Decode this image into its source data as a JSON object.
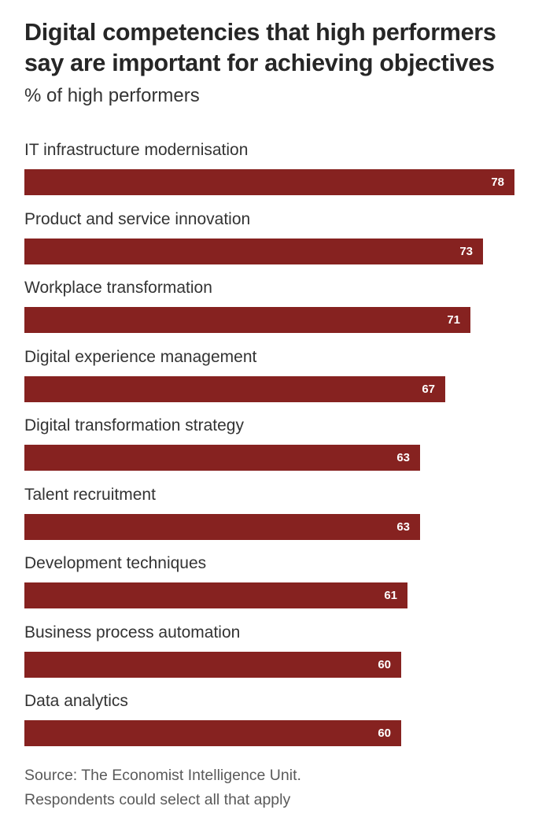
{
  "chart_data": {
    "type": "bar",
    "orientation": "horizontal",
    "title": "Digital competencies that high performers say are important for achieving objectives",
    "subtitle": "% of high performers",
    "categories": [
      "IT infrastructure modernisation",
      "Product and service innovation",
      "Workplace transformation",
      "Digital experience management",
      "Digital transformation strategy",
      "Talent recruitment",
      "Development techniques",
      "Business process automation",
      "Data analytics"
    ],
    "values": [
      78,
      73,
      71,
      67,
      63,
      63,
      61,
      60,
      60
    ],
    "xlim": [
      0,
      78
    ],
    "xlabel": "",
    "ylabel": "",
    "grid": false,
    "bar_color": "#862220",
    "value_label_color": "#ffffff"
  },
  "source": {
    "line1": "Source: The Economist Intelligence Unit.",
    "line2": "Respondents could select all that apply"
  }
}
